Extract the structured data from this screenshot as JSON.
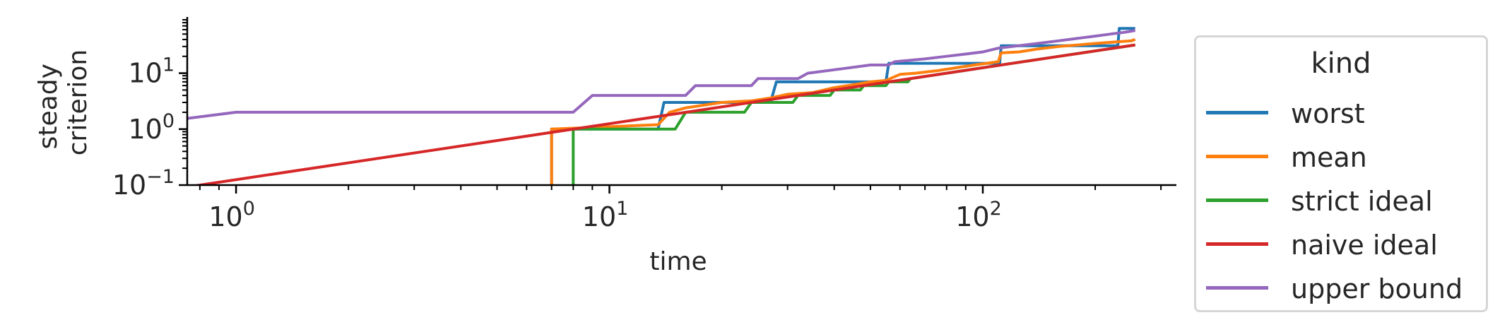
{
  "chart_data": {
    "type": "line",
    "title": "",
    "xlabel": "time",
    "ylabel_lines": [
      "steady",
      "criterion"
    ],
    "xscale": "log",
    "yscale": "log",
    "xlim": [
      0.74,
      330
    ],
    "ylim": [
      0.1,
      90
    ],
    "grid": false,
    "legend_title": "kind",
    "legend_placement": "outside-right",
    "x_ticks": [
      {
        "value": 1,
        "base": "10",
        "exp": "0"
      },
      {
        "value": 10,
        "base": "10",
        "exp": "1"
      },
      {
        "value": 100,
        "base": "10",
        "exp": "2"
      }
    ],
    "y_ticks": [
      {
        "value": 0.1,
        "base": "10",
        "exp": "−1"
      },
      {
        "value": 1,
        "base": "10",
        "exp": "0"
      },
      {
        "value": 10,
        "base": "10",
        "exp": "1"
      }
    ],
    "series": [
      {
        "name": "worst",
        "color": "#1f77b4",
        "points": [
          [
            7,
            0.1
          ],
          [
            7,
            1
          ],
          [
            13.5,
            1
          ],
          [
            14,
            3
          ],
          [
            27,
            3
          ],
          [
            28,
            7
          ],
          [
            55,
            7
          ],
          [
            56,
            15
          ],
          [
            111,
            15
          ],
          [
            112,
            31
          ],
          [
            230,
            31
          ],
          [
            232,
            63
          ],
          [
            256,
            63
          ]
        ]
      },
      {
        "name": "mean",
        "color": "#ff7f0e",
        "points": [
          [
            7,
            0.1
          ],
          [
            7,
            1
          ],
          [
            13.5,
            1.2
          ],
          [
            14.5,
            2
          ],
          [
            16,
            2.4
          ],
          [
            20,
            3
          ],
          [
            24,
            3.2
          ],
          [
            27,
            3.6
          ],
          [
            30,
            4.2
          ],
          [
            35,
            4.5
          ],
          [
            40,
            5.5
          ],
          [
            45,
            6.2
          ],
          [
            50,
            7
          ],
          [
            55,
            7.4
          ],
          [
            60,
            9.5
          ],
          [
            66,
            10
          ],
          [
            75,
            11
          ],
          [
            85,
            12.5
          ],
          [
            95,
            14
          ],
          [
            110,
            16
          ],
          [
            112,
            23
          ],
          [
            125,
            24
          ],
          [
            140,
            27
          ],
          [
            160,
            30
          ],
          [
            180,
            32
          ],
          [
            200,
            34
          ],
          [
            225,
            36
          ],
          [
            250,
            38
          ],
          [
            256,
            40
          ]
        ]
      },
      {
        "name": "strict ideal",
        "color": "#2ca02c",
        "points": [
          [
            8,
            0.1
          ],
          [
            8,
            1
          ],
          [
            15,
            1
          ],
          [
            16,
            2
          ],
          [
            23,
            2
          ],
          [
            24,
            3
          ],
          [
            31,
            3
          ],
          [
            32,
            4
          ],
          [
            39,
            4
          ],
          [
            40,
            5
          ],
          [
            47,
            5
          ],
          [
            48,
            6
          ],
          [
            55,
            6
          ],
          [
            56,
            7
          ],
          [
            63,
            7
          ],
          [
            64,
            8
          ],
          [
            80,
            10
          ],
          [
            100,
            12.5
          ],
          [
            128,
            16
          ],
          [
            160,
            20
          ],
          [
            200,
            25
          ],
          [
            256,
            32
          ]
        ]
      },
      {
        "name": "naive ideal",
        "color": "#d62728",
        "points": [
          [
            0.74,
            0.0925
          ],
          [
            256,
            32
          ]
        ]
      },
      {
        "name": "upper bound",
        "color": "#9467bd",
        "points": [
          [
            0.74,
            1.55
          ],
          [
            1,
            2
          ],
          [
            8,
            2
          ],
          [
            9,
            4
          ],
          [
            16,
            4
          ],
          [
            17,
            6
          ],
          [
            24,
            6
          ],
          [
            25,
            8
          ],
          [
            32,
            8
          ],
          [
            34,
            10
          ],
          [
            42,
            12
          ],
          [
            50,
            14
          ],
          [
            56,
            14
          ],
          [
            58,
            16
          ],
          [
            70,
            18
          ],
          [
            80,
            20
          ],
          [
            90,
            22
          ],
          [
            100,
            24
          ],
          [
            110,
            28
          ],
          [
            120,
            30
          ],
          [
            140,
            34
          ],
          [
            160,
            38
          ],
          [
            180,
            42
          ],
          [
            200,
            46
          ],
          [
            220,
            50
          ],
          [
            240,
            54
          ],
          [
            256,
            58
          ]
        ]
      }
    ]
  }
}
